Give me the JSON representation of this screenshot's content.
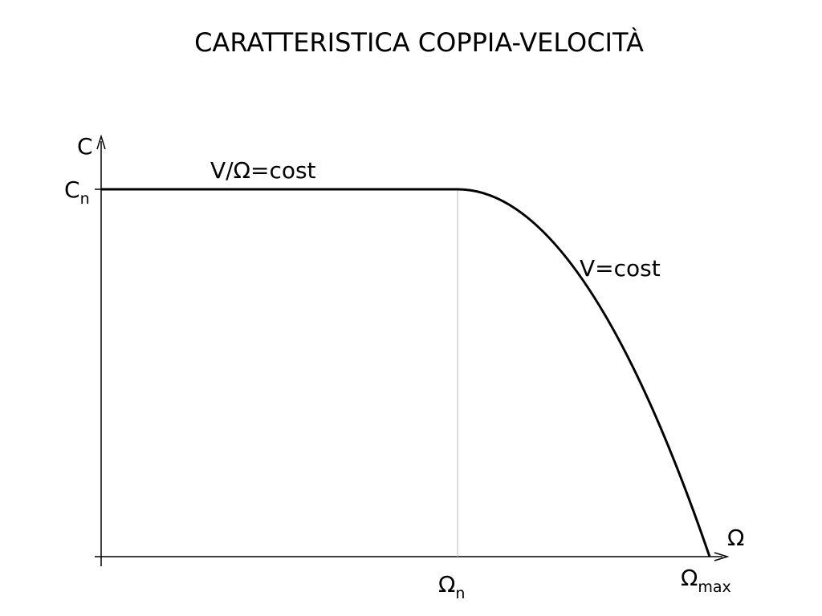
{
  "title": "CARATTERISTICA COPPIA-VELOCITÀ",
  "y_axis": {
    "label": "C",
    "tick": {
      "main": "C",
      "sub": "n"
    }
  },
  "x_axis": {
    "label": "Ω",
    "ticks": [
      {
        "main": "Ω",
        "sub": "n"
      },
      {
        "main": "Ω",
        "sub": "max"
      }
    ]
  },
  "annotations": [
    "V/Ω=cost",
    "V=cost"
  ]
}
